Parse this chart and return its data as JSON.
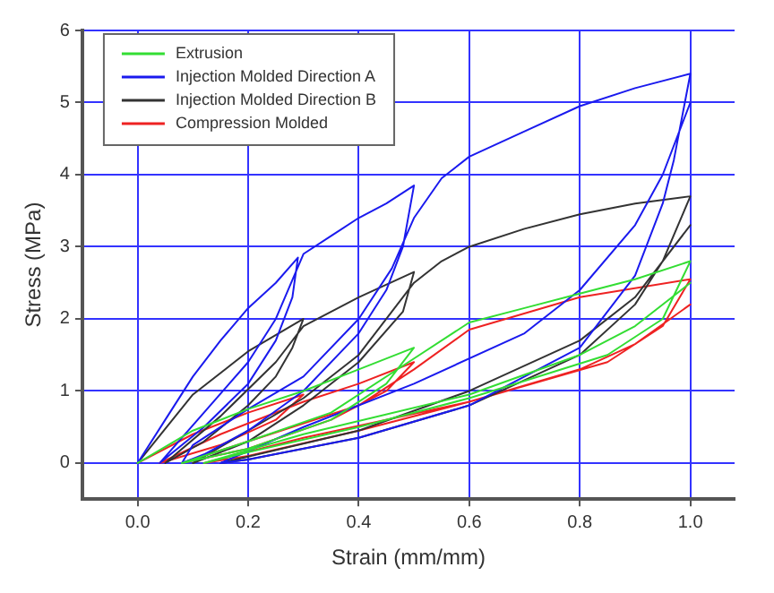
{
  "chart_data": {
    "type": "line",
    "xlabel": "Strain (mm/mm)",
    "ylabel": "Stress (MPa)",
    "xlim": [
      -0.1,
      1.08
    ],
    "ylim": [
      -0.5,
      6
    ],
    "xticks": [
      {
        "value": 0,
        "label": "0.0"
      },
      0.2,
      0.4,
      0.6,
      0.8,
      {
        "value": 1,
        "label": "1.0"
      }
    ],
    "yticks": [
      0,
      1,
      2,
      3,
      4,
      5,
      6
    ],
    "grid": true,
    "legend": "top left",
    "marker": "none",
    "line_style": "solid",
    "series": [
      {
        "name": "Extrusion",
        "color": "#33dd33",
        "x": [
          0,
          0.1,
          0.2,
          0.3,
          0.4,
          0.5,
          0.45,
          0.35,
          0.2,
          0.08,
          0.2,
          0.35,
          0.5,
          0.6,
          0.7,
          0.8,
          0.9,
          1.0,
          0.95,
          0.85,
          0.6,
          0.4,
          0.2,
          0.12,
          0.3,
          0.6,
          0.8,
          0.9,
          1.0
        ],
        "values": [
          0,
          0.45,
          0.75,
          1.0,
          1.3,
          1.6,
          1.1,
          0.6,
          0.2,
          0,
          0.3,
          0.7,
          1.45,
          1.95,
          2.15,
          2.35,
          2.55,
          2.8,
          2.0,
          1.5,
          0.9,
          0.5,
          0.15,
          0,
          0.4,
          0.95,
          1.5,
          1.9,
          2.5
        ]
      },
      {
        "name": "Injection Molded Direction A",
        "color": "#1a1aee",
        "x": [
          0,
          0.05,
          0.1,
          0.15,
          0.2,
          0.25,
          0.29,
          0.28,
          0.25,
          0.2,
          0.12,
          0.04,
          0.12,
          0.2,
          0.25,
          0.3,
          0.35,
          0.4,
          0.45,
          0.5,
          0.48,
          0.45,
          0.4,
          0.3,
          0.2,
          0.12,
          0.08,
          0.1,
          0.2,
          0.3,
          0.4,
          0.46,
          0.5,
          0.55,
          0.6,
          0.7,
          0.8,
          0.9,
          1.0,
          0.97,
          0.95,
          0.9,
          0.8,
          0.6,
          0.4,
          0.2,
          0.15,
          0.3,
          0.5,
          0.7,
          0.8,
          0.9,
          0.95,
          1.0
        ],
        "values": [
          0,
          0.6,
          1.2,
          1.7,
          2.15,
          2.5,
          2.85,
          2.3,
          1.7,
          1.1,
          0.5,
          0,
          0.7,
          1.4,
          2.0,
          2.9,
          3.15,
          3.4,
          3.6,
          3.85,
          3.0,
          2.4,
          1.8,
          1.0,
          0.45,
          0.12,
          0,
          0.25,
          0.75,
          1.2,
          2.0,
          2.7,
          3.4,
          3.95,
          4.25,
          4.6,
          4.95,
          5.2,
          5.4,
          4.2,
          3.6,
          2.6,
          1.6,
          0.8,
          0.35,
          0.05,
          0,
          0.5,
          1.1,
          1.8,
          2.4,
          3.3,
          4.0,
          5.0
        ]
      },
      {
        "name": "Injection Molded Direction B",
        "color": "#333333",
        "x": [
          0,
          0.1,
          0.2,
          0.3,
          0.28,
          0.25,
          0.2,
          0.12,
          0.05,
          0.15,
          0.25,
          0.3,
          0.4,
          0.5,
          0.48,
          0.4,
          0.3,
          0.2,
          0.1,
          0.2,
          0.3,
          0.4,
          0.5,
          0.55,
          0.6,
          0.7,
          0.8,
          0.9,
          1.0,
          0.95,
          0.9,
          0.8,
          0.6,
          0.4,
          0.2,
          0.15,
          0.4,
          0.6,
          0.8,
          0.9,
          1.0
        ],
        "values": [
          0,
          0.95,
          1.55,
          2.0,
          1.6,
          1.2,
          0.8,
          0.3,
          0,
          0.65,
          1.4,
          1.9,
          2.3,
          2.65,
          2.1,
          1.4,
          0.8,
          0.3,
          0,
          0.45,
          0.9,
          1.5,
          2.5,
          2.8,
          3.0,
          3.25,
          3.45,
          3.6,
          3.7,
          2.8,
          2.2,
          1.5,
          0.8,
          0.35,
          0.05,
          0,
          0.45,
          1.0,
          1.7,
          2.3,
          3.3
        ]
      },
      {
        "name": "Compression Molded",
        "color": "#ee2222",
        "x": [
          0,
          0.1,
          0.2,
          0.3,
          0.25,
          0.15,
          0.04,
          0.15,
          0.3,
          0.4,
          0.5,
          0.45,
          0.35,
          0.2,
          0.08,
          0.2,
          0.4,
          0.5,
          0.6,
          0.8,
          1.0,
          0.95,
          0.85,
          0.6,
          0.4,
          0.2,
          0.12,
          0.3,
          0.6,
          0.8,
          0.9,
          1.0
        ],
        "values": [
          0,
          0.4,
          0.7,
          0.95,
          0.6,
          0.25,
          0,
          0.4,
          0.85,
          1.1,
          1.4,
          1.0,
          0.6,
          0.2,
          0,
          0.3,
          0.8,
          1.3,
          1.85,
          2.3,
          2.55,
          1.9,
          1.4,
          0.85,
          0.45,
          0.1,
          0,
          0.35,
          0.85,
          1.3,
          1.65,
          2.2
        ]
      }
    ]
  }
}
